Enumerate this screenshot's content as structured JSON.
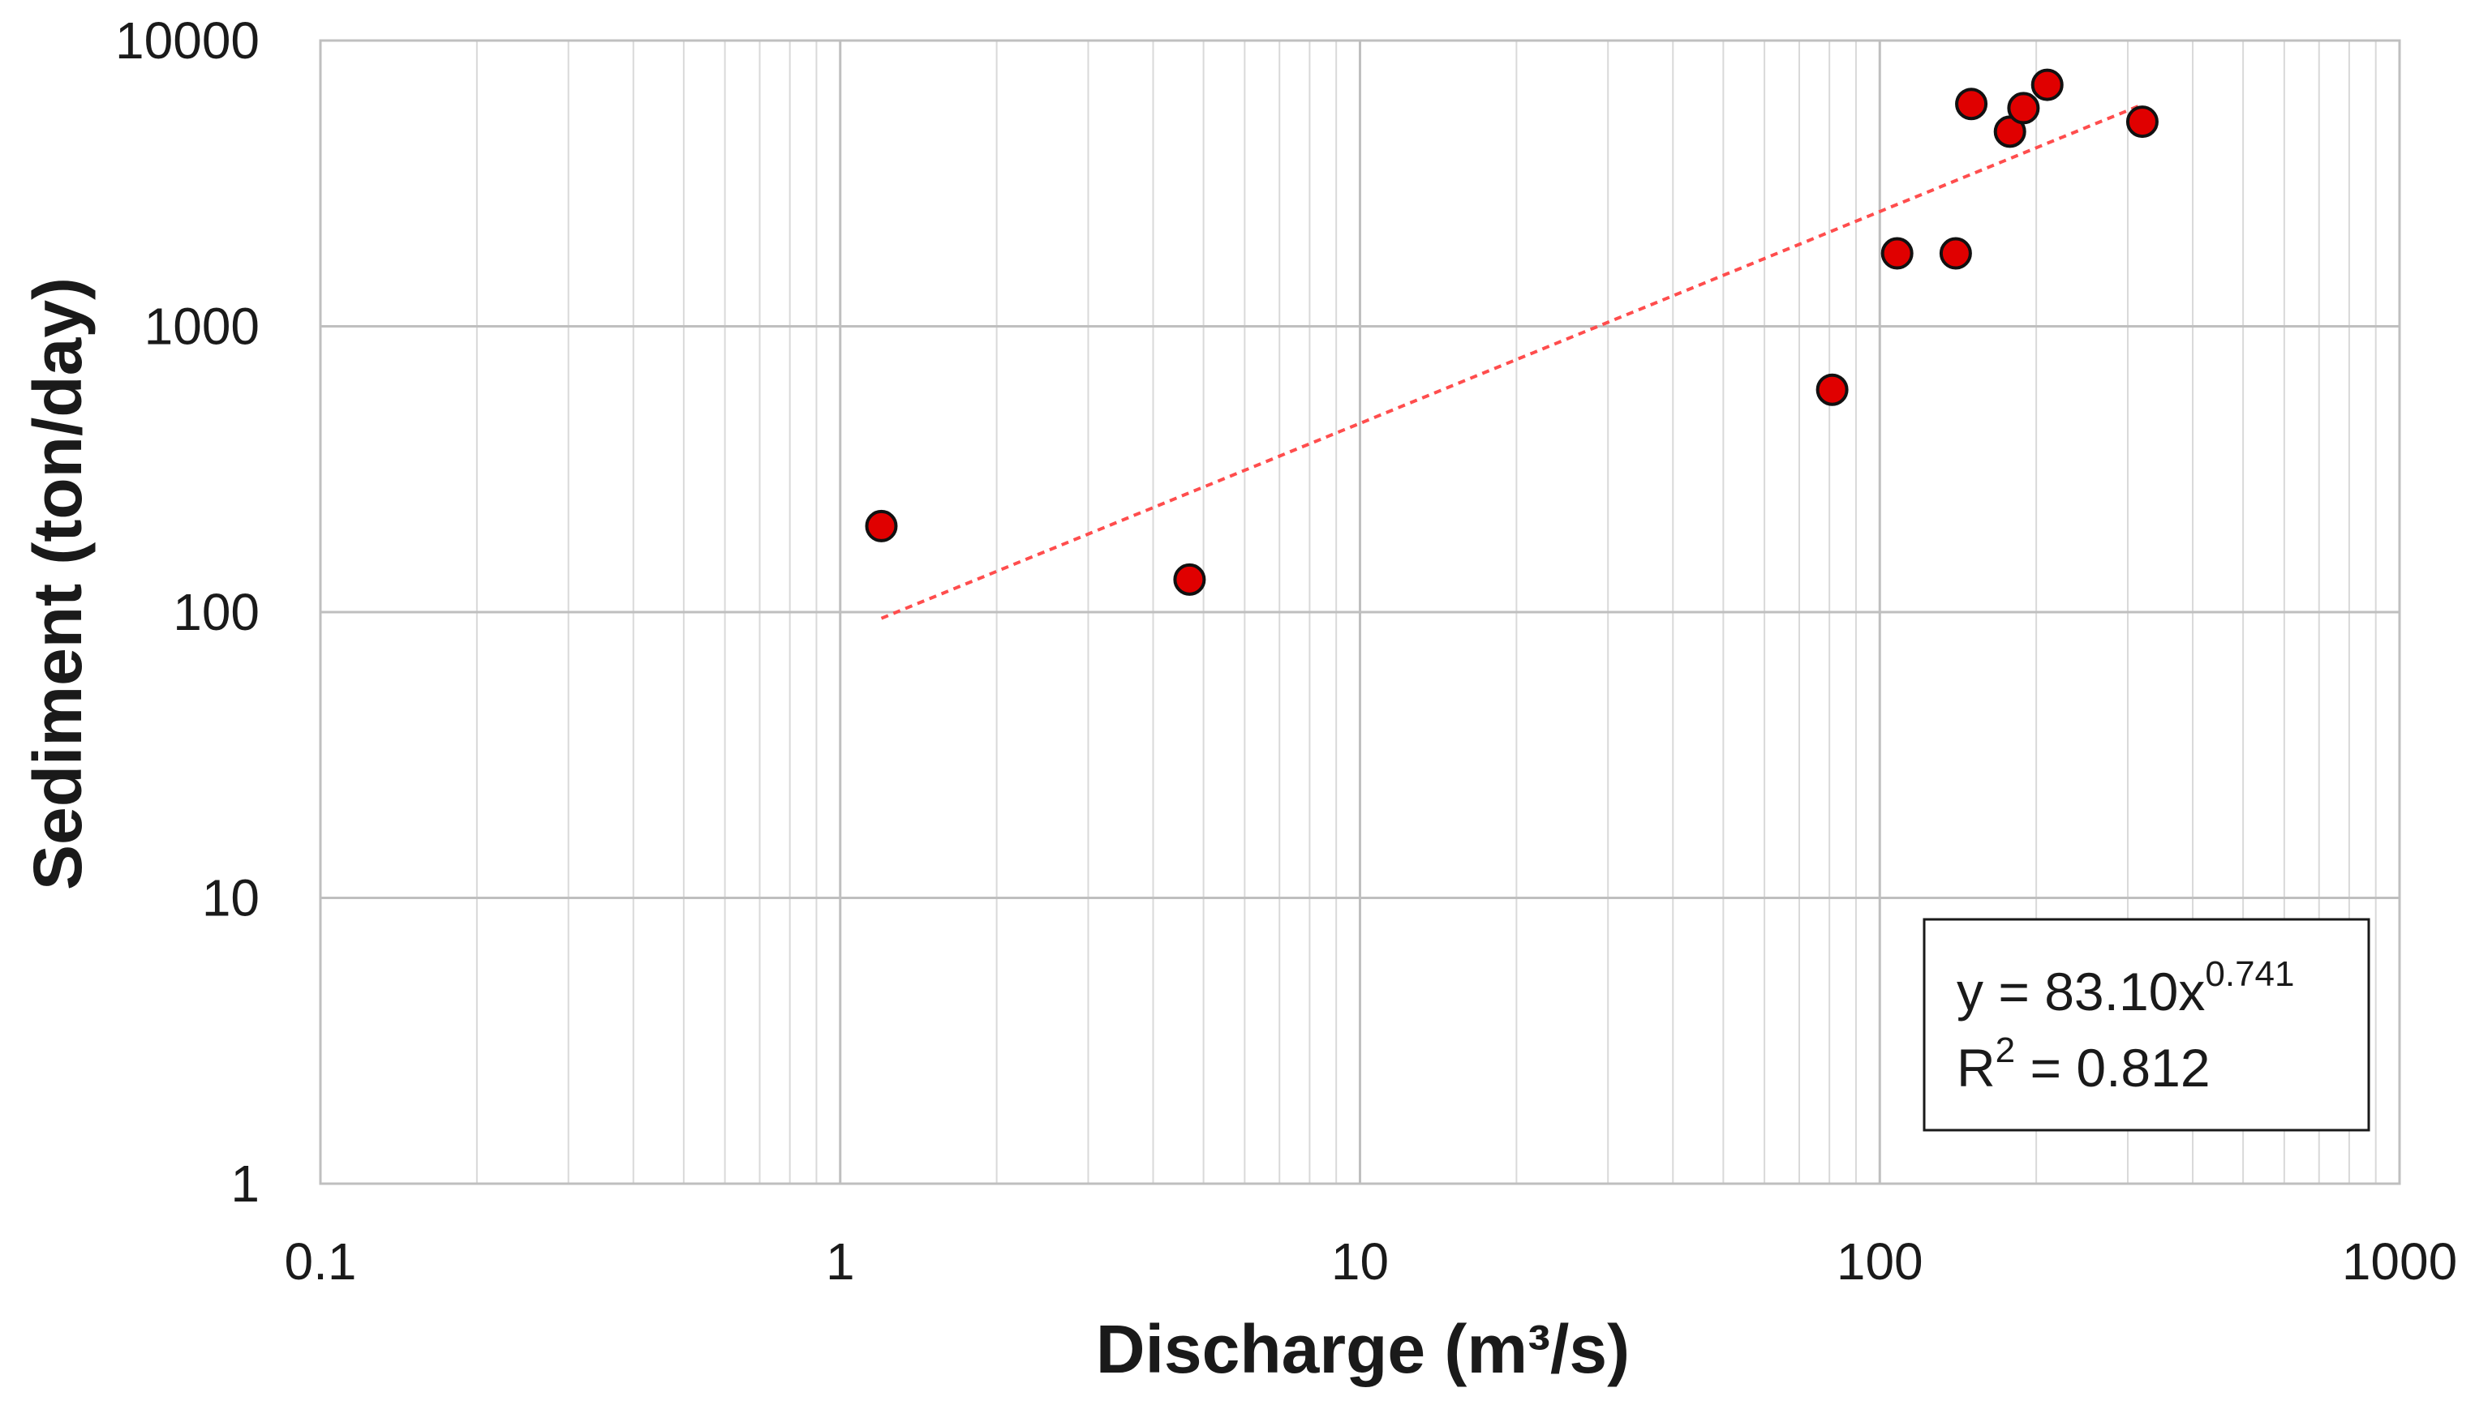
{
  "chart_data": {
    "type": "scatter",
    "xlabel": "Discharge (m³/s)",
    "ylabel": "Sediment (ton/day)",
    "xscale": "log",
    "yscale": "log",
    "xlim": [
      0.1,
      1000
    ],
    "ylim": [
      1,
      10000
    ],
    "grid": true,
    "x_ticks": [
      {
        "value": 0.1,
        "label": "0.1"
      },
      {
        "value": 1,
        "label": "1"
      },
      {
        "value": 10,
        "label": "10"
      },
      {
        "value": 100,
        "label": "100"
      },
      {
        "value": 1000,
        "label": "1000"
      }
    ],
    "y_ticks": [
      {
        "value": 1,
        "label": "1"
      },
      {
        "value": 10,
        "label": "10"
      },
      {
        "value": 100,
        "label": "100"
      },
      {
        "value": 1000,
        "label": "1000"
      },
      {
        "value": 10000,
        "label": "10000"
      }
    ],
    "series": [
      {
        "color": "#e00000",
        "points": [
          {
            "x": 1.2,
            "y": 200
          },
          {
            "x": 4.7,
            "y": 130
          },
          {
            "x": 81,
            "y": 600
          },
          {
            "x": 108,
            "y": 1800
          },
          {
            "x": 140,
            "y": 1800
          },
          {
            "x": 150,
            "y": 6000
          },
          {
            "x": 178,
            "y": 4800
          },
          {
            "x": 189,
            "y": 5800
          },
          {
            "x": 210,
            "y": 7000
          },
          {
            "x": 320,
            "y": 5200
          }
        ]
      }
    ],
    "trendline": {
      "type": "power",
      "a": 83.1,
      "b": 0.741,
      "x_range": [
        1.2,
        320
      ],
      "color": "#ff4d4d",
      "style": "dotted"
    },
    "annotation": {
      "equation_prefix": "y = 83.10x",
      "equation_exponent": "0.741",
      "r2_prefix": "R",
      "r2_exponent": "2",
      "r2_suffix": " = 0.812",
      "placement": "bottom-right"
    }
  }
}
